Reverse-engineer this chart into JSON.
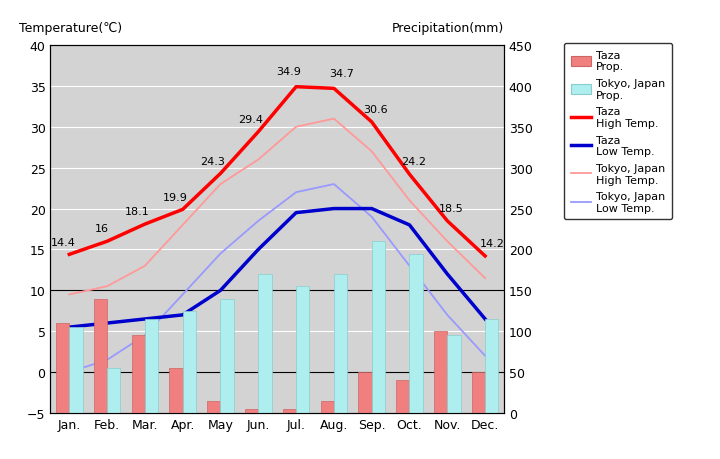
{
  "months": [
    "Jan.",
    "Feb.",
    "Mar.",
    "Apr.",
    "May",
    "Jun.",
    "Jul.",
    "Aug.",
    "Sep.",
    "Oct.",
    "Nov.",
    "Dec."
  ],
  "taza_high": [
    14.4,
    16,
    18.1,
    19.9,
    24.3,
    29.4,
    34.9,
    34.7,
    30.6,
    24.2,
    18.5,
    14.2
  ],
  "taza_low": [
    5.5,
    6.0,
    6.5,
    7.0,
    10.0,
    15.0,
    19.5,
    20.0,
    20.0,
    18.0,
    12.0,
    6.5
  ],
  "tokyo_high": [
    9.5,
    10.5,
    13.0,
    18.0,
    23.0,
    26.0,
    30.0,
    31.0,
    27.0,
    21.0,
    16.0,
    11.5
  ],
  "tokyo_low": [
    0.0,
    1.5,
    4.5,
    9.5,
    14.5,
    18.5,
    22.0,
    23.0,
    19.0,
    13.0,
    7.0,
    2.0
  ],
  "taza_precip_mm": [
    110,
    140,
    95,
    55,
    15,
    5,
    5,
    15,
    50,
    40,
    100,
    50
  ],
  "tokyo_precip_mm": [
    105,
    55,
    115,
    125,
    140,
    170,
    155,
    170,
    210,
    195,
    95,
    115
  ],
  "taza_high_labels": [
    "14.4",
    "16",
    "18.1",
    "19.9",
    "24.3",
    "29.4",
    "34.9",
    "34.7",
    "30.6",
    "24.2",
    "18.5",
    "14.2"
  ],
  "bg_color": "#d3d3d3",
  "taza_bar_color": "#f08080",
  "tokyo_bar_color": "#afeeee",
  "taza_high_color": "#ff0000",
  "taza_low_color": "#0000cd",
  "tokyo_high_color": "#ff9999",
  "tokyo_low_color": "#9999ff",
  "temp_ylim": [
    -5,
    40
  ],
  "precip_ylim": [
    0,
    450
  ],
  "title_left": "Temperature(℃)",
  "title_right": "Precipitation(mm)",
  "legend_labels": [
    "Taza\nProp.",
    "Tokyo, Japan\nProp.",
    "Taza\nHigh Temp.",
    "Taza\nLow Temp.",
    "Tokyo, Japan\nHigh Temp.",
    "Tokyo, Japan\nLow Temp."
  ]
}
